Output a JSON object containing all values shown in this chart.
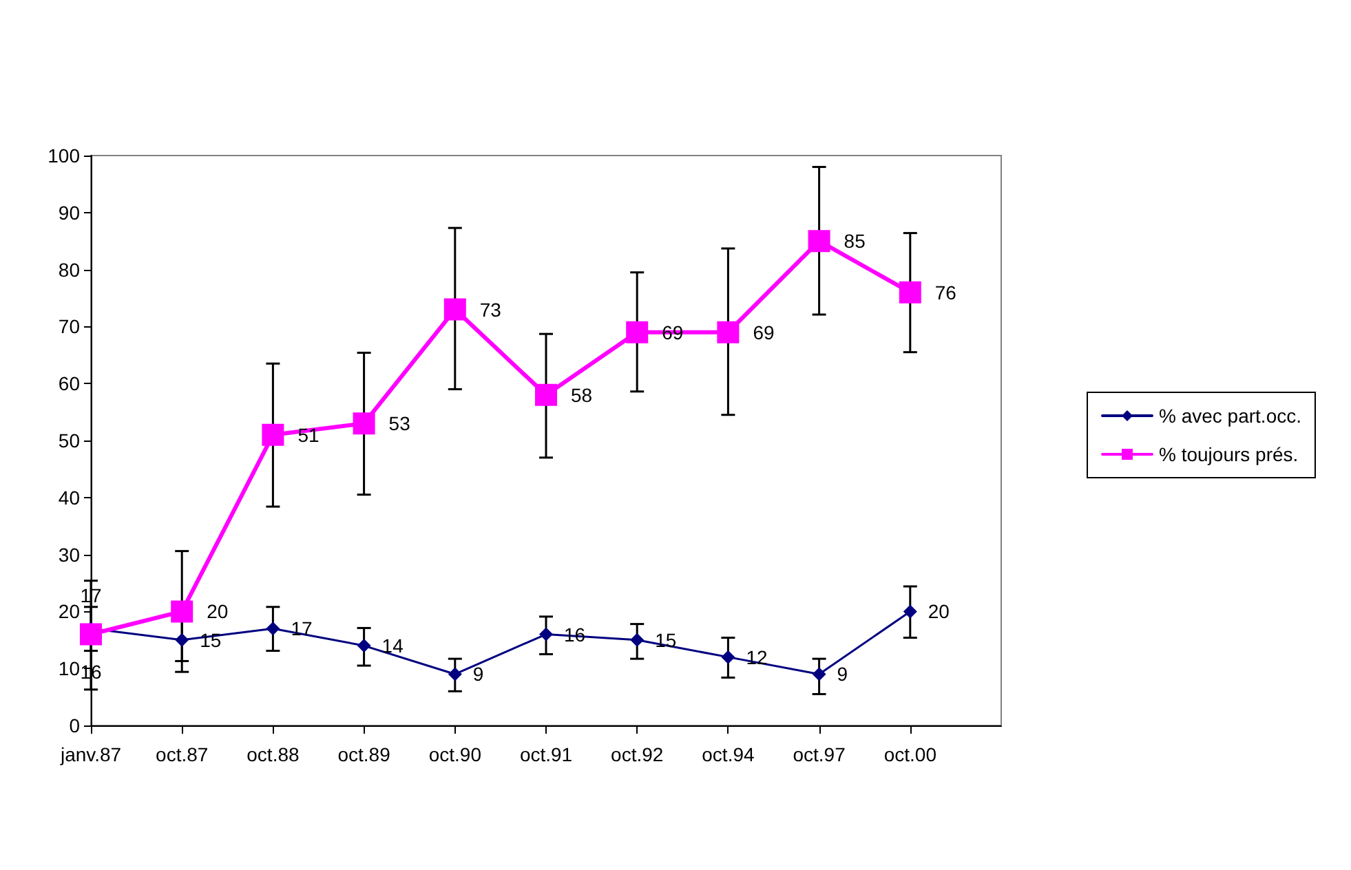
{
  "chart_data": {
    "type": "line",
    "categories": [
      "janv.87",
      "oct.87",
      "oct.88",
      "oct.89",
      "oct.90",
      "oct.91",
      "oct.92",
      "oct.94",
      "oct.97",
      "oct.00"
    ],
    "series": [
      {
        "name": "% avec part.occ.",
        "color": "#000080",
        "marker": "diamond",
        "values": [
          17,
          15,
          17,
          14,
          9,
          16,
          15,
          12,
          9,
          20
        ],
        "errors": [
          [
            13.1,
            20.8
          ],
          [
            11.3,
            18.7
          ],
          [
            13.1,
            20.8
          ],
          [
            10.5,
            17.1
          ],
          [
            6.0,
            11.7
          ],
          [
            12.5,
            19.1
          ],
          [
            11.7,
            17.8
          ],
          [
            8.4,
            15.4
          ],
          [
            5.5,
            11.7
          ],
          [
            15.4,
            24.4
          ]
        ]
      },
      {
        "name": "% toujours prés.",
        "color": "#ff00ff",
        "marker": "square",
        "values": [
          16,
          20,
          51,
          53,
          73,
          58,
          69,
          69,
          85,
          76
        ],
        "errors": [
          [
            6.3,
            25.4
          ],
          [
            9.4,
            30.6
          ],
          [
            38.4,
            63.5
          ],
          [
            40.5,
            65.4
          ],
          [
            59.0,
            87.3
          ],
          [
            47.0,
            68.7
          ],
          [
            58.6,
            79.5
          ],
          [
            54.5,
            83.7
          ],
          [
            72.1,
            98.0
          ],
          [
            65.5,
            86.4
          ]
        ]
      }
    ],
    "ylim": [
      0,
      100
    ],
    "yticks": [
      0,
      10,
      20,
      30,
      40,
      50,
      60,
      70,
      80,
      90,
      100
    ],
    "grid": false,
    "legend": "right",
    "data_labels": true,
    "line_style": "solid"
  }
}
